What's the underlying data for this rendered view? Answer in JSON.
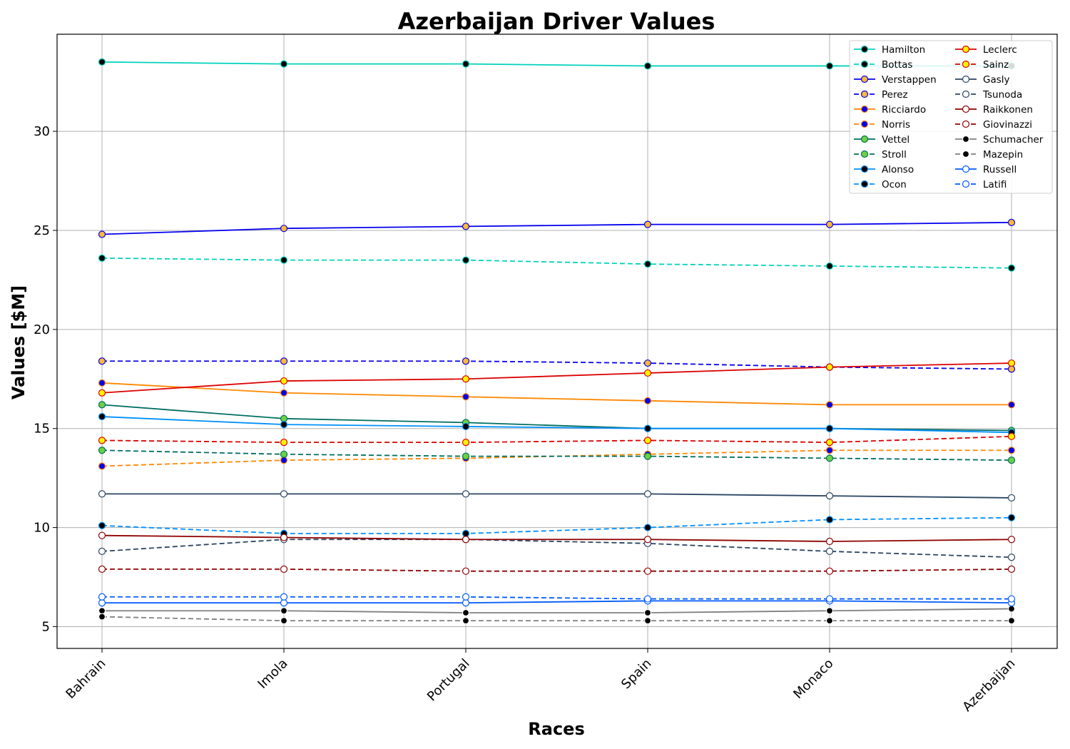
{
  "chart_data": {
    "type": "line",
    "title": "Azerbaijan Driver Values",
    "xlabel": "Races",
    "ylabel": "Values [$M]",
    "categories": [
      "Bahrain",
      "Imola",
      "Portugal",
      "Spain",
      "Monaco",
      "Azerbaijan"
    ],
    "ylim": [
      3.9,
      34.9
    ],
    "yticks": [
      5,
      10,
      15,
      20,
      25,
      30
    ],
    "grid": true,
    "legend_position": "top-right",
    "legend_columns": 2,
    "series": [
      {
        "name": "Hamilton",
        "values": [
          33.5,
          33.4,
          33.4,
          33.3,
          33.3,
          33.3
        ],
        "color": "#00d2be",
        "dash": false,
        "marker_fill": "#000000",
        "marker_edge": "#00d2be"
      },
      {
        "name": "Bottas",
        "values": [
          23.6,
          23.5,
          23.5,
          23.3,
          23.2,
          23.1
        ],
        "color": "#00d2be",
        "dash": true,
        "marker_fill": "#000000",
        "marker_edge": "#00d2be"
      },
      {
        "name": "Verstappen",
        "values": [
          24.8,
          25.1,
          25.2,
          25.3,
          25.3,
          25.4
        ],
        "color": "#0600ef",
        "dash": false,
        "marker_fill": "#ffb838",
        "marker_edge": "#0600ef"
      },
      {
        "name": "Perez",
        "values": [
          18.4,
          18.4,
          18.4,
          18.3,
          18.1,
          18.0
        ],
        "color": "#0600ef",
        "dash": true,
        "marker_fill": "#ffb838",
        "marker_edge": "#0600ef"
      },
      {
        "name": "Ricciardo",
        "values": [
          17.3,
          16.8,
          16.6,
          16.4,
          16.2,
          16.2
        ],
        "color": "#ff8700",
        "dash": false,
        "marker_fill": "#0600ef",
        "marker_edge": "#ff8700"
      },
      {
        "name": "Norris",
        "values": [
          13.1,
          13.4,
          13.5,
          13.7,
          13.9,
          13.9
        ],
        "color": "#ff8700",
        "dash": true,
        "marker_fill": "#0600ef",
        "marker_edge": "#ff8700"
      },
      {
        "name": "Vettel",
        "values": [
          16.2,
          15.5,
          15.3,
          15.0,
          15.0,
          14.9
        ],
        "color": "#006f62",
        "dash": false,
        "marker_fill": "#6cd242",
        "marker_edge": "#006f62"
      },
      {
        "name": "Stroll",
        "values": [
          13.9,
          13.7,
          13.6,
          13.6,
          13.5,
          13.4
        ],
        "color": "#006f62",
        "dash": true,
        "marker_fill": "#6cd242",
        "marker_edge": "#006f62"
      },
      {
        "name": "Alonso",
        "values": [
          15.6,
          15.2,
          15.1,
          15.0,
          15.0,
          14.8
        ],
        "color": "#0090ff",
        "dash": false,
        "marker_fill": "#000000",
        "marker_edge": "#0090ff"
      },
      {
        "name": "Ocon",
        "values": [
          10.1,
          9.7,
          9.7,
          10.0,
          10.4,
          10.5
        ],
        "color": "#0090ff",
        "dash": true,
        "marker_fill": "#000000",
        "marker_edge": "#0090ff"
      },
      {
        "name": "Leclerc",
        "values": [
          16.8,
          17.4,
          17.5,
          17.8,
          18.1,
          18.3
        ],
        "color": "#dc0000",
        "dash": false,
        "marker_fill": "#fff200",
        "marker_edge": "#dc0000"
      },
      {
        "name": "Sainz",
        "values": [
          14.4,
          14.3,
          14.3,
          14.4,
          14.3,
          14.6
        ],
        "color": "#dc0000",
        "dash": true,
        "marker_fill": "#fff200",
        "marker_edge": "#dc0000"
      },
      {
        "name": "Gasly",
        "values": [
          11.7,
          11.7,
          11.7,
          11.7,
          11.6,
          11.5
        ],
        "color": "#2b4562",
        "dash": false,
        "marker_fill": "#ffffff",
        "marker_edge": "#2b4562"
      },
      {
        "name": "Tsunoda",
        "values": [
          8.8,
          9.4,
          9.4,
          9.2,
          8.8,
          8.5
        ],
        "color": "#2b4562",
        "dash": true,
        "marker_fill": "#ffffff",
        "marker_edge": "#2b4562"
      },
      {
        "name": "Raikkonen",
        "values": [
          9.6,
          9.5,
          9.4,
          9.4,
          9.3,
          9.4
        ],
        "color": "#900000",
        "dash": false,
        "marker_fill": "#ffffff",
        "marker_edge": "#900000"
      },
      {
        "name": "Giovinazzi",
        "values": [
          7.9,
          7.9,
          7.8,
          7.8,
          7.8,
          7.9
        ],
        "color": "#900000",
        "dash": true,
        "marker_fill": "#ffffff",
        "marker_edge": "#900000"
      },
      {
        "name": "Schumacher",
        "values": [
          5.8,
          5.8,
          5.7,
          5.7,
          5.8,
          5.9
        ],
        "color": "#808080",
        "dash": false,
        "marker_fill": "#000000",
        "marker_edge": "#ffffff"
      },
      {
        "name": "Mazepin",
        "values": [
          5.5,
          5.3,
          5.3,
          5.3,
          5.3,
          5.3
        ],
        "color": "#808080",
        "dash": true,
        "marker_fill": "#000000",
        "marker_edge": "#ffffff"
      },
      {
        "name": "Russell",
        "values": [
          6.2,
          6.2,
          6.2,
          6.3,
          6.3,
          6.2
        ],
        "color": "#005aff",
        "dash": false,
        "marker_fill": "#ffffff",
        "marker_edge": "#005aff"
      },
      {
        "name": "Latifi",
        "values": [
          6.5,
          6.5,
          6.5,
          6.4,
          6.4,
          6.4
        ],
        "color": "#005aff",
        "dash": true,
        "marker_fill": "#ffffff",
        "marker_edge": "#005aff"
      }
    ]
  }
}
